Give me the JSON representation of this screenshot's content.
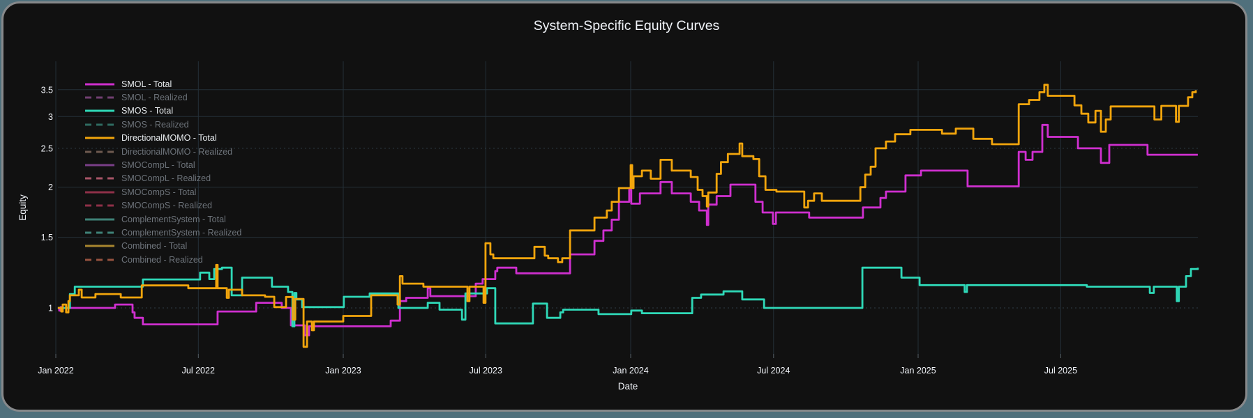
{
  "page": {
    "title": "System-Specific Equity Curves",
    "colors": {
      "page_background": "#50707c",
      "card_background": "#111111",
      "card_border": "#87898b",
      "grid": "#243038",
      "grid_dotted": "#2f3d47",
      "tick_mark": "#555f66",
      "text": "#f2f5fa",
      "muted_text": "#6d737a"
    }
  },
  "chart_data": {
    "type": "line",
    "title": "System-Specific Equity Curves",
    "xlabel": "Date",
    "ylabel": "Equity",
    "legend_position": "top-left-inside",
    "grid": true,
    "x_axis": {
      "range": [
        2022.007,
        2025.973
      ],
      "ticks": [
        {
          "t": 2022.0,
          "label": "Jan 2022"
        },
        {
          "t": 2022.496,
          "label": "Jul 2022"
        },
        {
          "t": 2023.0,
          "label": "Jan 2023"
        },
        {
          "t": 2023.496,
          "label": "Jul 2023"
        },
        {
          "t": 2024.0,
          "label": "Jan 2024"
        },
        {
          "t": 2024.497,
          "label": "Jul 2024"
        },
        {
          "t": 2025.0,
          "label": "Jan 2025"
        },
        {
          "t": 2025.496,
          "label": "Jul 2025"
        }
      ]
    },
    "y_axis": {
      "scale": "log",
      "range": [
        0.768,
        4.12
      ],
      "ticks": [
        1,
        1.5,
        2,
        2.5,
        3,
        3.5
      ],
      "dotted_ticks": [
        1,
        2.5
      ]
    },
    "series": [
      {
        "name": "SMOL - Total",
        "color": "#cf2fcf",
        "dash": "solid",
        "visible": true,
        "points": [
          [
            2022.007,
            1.0
          ],
          [
            2022.012,
            0.985
          ],
          [
            2022.017,
            1.005
          ],
          [
            2022.022,
            1.0
          ],
          [
            2022.206,
            1.02
          ],
          [
            2022.267,
            0.975
          ],
          [
            2022.274,
            0.945
          ],
          [
            2022.303,
            0.91
          ],
          [
            2022.563,
            0.98
          ],
          [
            2022.697,
            1.03
          ],
          [
            2022.786,
            1.0
          ],
          [
            2022.818,
            0.905
          ],
          [
            2022.866,
            0.855
          ],
          [
            2022.881,
            0.9
          ],
          [
            2023.165,
            0.93
          ],
          [
            2023.197,
            1.04
          ],
          [
            2023.219,
            1.06
          ],
          [
            2023.294,
            1.12
          ],
          [
            2023.303,
            1.07
          ],
          [
            2023.461,
            1.15
          ],
          [
            2023.485,
            1.18
          ],
          [
            2023.529,
            1.235
          ],
          [
            2023.536,
            1.26
          ],
          [
            2023.602,
            1.22
          ],
          [
            2023.789,
            1.36
          ],
          [
            2023.874,
            1.47
          ],
          [
            2023.905,
            1.56
          ],
          [
            2023.934,
            1.66
          ],
          [
            2023.959,
            1.84
          ],
          [
            2023.995,
            1.97
          ],
          [
            2024.002,
            1.82
          ],
          [
            2024.032,
            1.93
          ],
          [
            2024.104,
            2.06
          ],
          [
            2024.143,
            1.93
          ],
          [
            2024.209,
            1.84
          ],
          [
            2024.238,
            1.75
          ],
          [
            2024.265,
            1.61
          ],
          [
            2024.27,
            1.81
          ],
          [
            2024.299,
            1.9
          ],
          [
            2024.347,
            2.03
          ],
          [
            2024.434,
            1.84
          ],
          [
            2024.459,
            1.73
          ],
          [
            2024.495,
            1.62
          ],
          [
            2024.505,
            1.73
          ],
          [
            2024.621,
            1.68
          ],
          [
            2024.808,
            1.78
          ],
          [
            2024.869,
            1.88
          ],
          [
            2024.888,
            1.95
          ],
          [
            2024.956,
            2.14
          ],
          [
            2025.01,
            2.2
          ],
          [
            2025.172,
            2.01
          ],
          [
            2025.35,
            2.45
          ],
          [
            2025.374,
            2.34
          ],
          [
            2025.398,
            2.45
          ],
          [
            2025.432,
            2.86
          ],
          [
            2025.451,
            2.67
          ],
          [
            2025.556,
            2.5
          ],
          [
            2025.636,
            2.3
          ],
          [
            2025.665,
            2.55
          ],
          [
            2025.798,
            2.41
          ],
          [
            2025.973,
            2.41
          ]
        ]
      },
      {
        "name": "SMOL - Realized",
        "color": "#713f71",
        "dash": "dash",
        "visible": false,
        "points": []
      },
      {
        "name": "SMOS - Total",
        "color": "#2fd9b8",
        "dash": "solid",
        "visible": true,
        "points": [
          [
            2022.007,
            1.0
          ],
          [
            2022.049,
            1.083
          ],
          [
            2022.066,
            1.13
          ],
          [
            2022.303,
            1.178
          ],
          [
            2022.502,
            1.225
          ],
          [
            2022.534,
            1.18
          ],
          [
            2022.551,
            1.25
          ],
          [
            2022.578,
            1.26
          ],
          [
            2022.612,
            1.075
          ],
          [
            2022.648,
            1.19
          ],
          [
            2022.752,
            1.13
          ],
          [
            2022.808,
            1.096
          ],
          [
            2022.823,
            0.9
          ],
          [
            2022.83,
            1.09
          ],
          [
            2022.837,
            1.05
          ],
          [
            2022.857,
            1.005
          ],
          [
            2023.002,
            1.066
          ],
          [
            2023.092,
            1.087
          ],
          [
            2023.192,
            1.0
          ],
          [
            2023.294,
            1.03
          ],
          [
            2023.335,
            0.99
          ],
          [
            2023.413,
            0.935
          ],
          [
            2023.425,
            1.087
          ],
          [
            2023.5,
            1.12
          ],
          [
            2023.529,
            0.915
          ],
          [
            2023.66,
            1.025
          ],
          [
            2023.709,
            0.945
          ],
          [
            2023.755,
            0.975
          ],
          [
            2023.765,
            0.99
          ],
          [
            2023.888,
            0.965
          ],
          [
            2024.002,
            0.985
          ],
          [
            2024.039,
            0.97
          ],
          [
            2024.214,
            1.06
          ],
          [
            2024.245,
            1.08
          ],
          [
            2024.323,
            1.1
          ],
          [
            2024.388,
            1.05
          ],
          [
            2024.464,
            1.0
          ],
          [
            2024.806,
            1.26
          ],
          [
            2024.942,
            1.19
          ],
          [
            2025.005,
            1.14
          ],
          [
            2025.162,
            1.096
          ],
          [
            2025.17,
            1.14
          ],
          [
            2025.587,
            1.13
          ],
          [
            2025.806,
            1.09
          ],
          [
            2025.82,
            1.13
          ],
          [
            2025.9,
            1.04
          ],
          [
            2025.907,
            1.13
          ],
          [
            2025.932,
            1.2
          ],
          [
            2025.949,
            1.25
          ],
          [
            2025.973,
            1.26
          ]
        ]
      },
      {
        "name": "SMOS - Realized",
        "color": "#2f6b61",
        "dash": "dash",
        "visible": false,
        "points": []
      },
      {
        "name": "DirectionalMOMO - Total",
        "color": "#f2a50c",
        "dash": "solid",
        "visible": true,
        "points": [
          [
            2022.007,
            1.0
          ],
          [
            2022.019,
            0.98
          ],
          [
            2022.024,
            1.02
          ],
          [
            2022.036,
            0.975
          ],
          [
            2022.044,
            1.04
          ],
          [
            2022.049,
            1.075
          ],
          [
            2022.08,
            1.11
          ],
          [
            2022.09,
            1.062
          ],
          [
            2022.138,
            1.083
          ],
          [
            2022.226,
            1.062
          ],
          [
            2022.299,
            1.138
          ],
          [
            2022.461,
            1.12
          ],
          [
            2022.558,
            1.28
          ],
          [
            2022.563,
            1.12
          ],
          [
            2022.595,
            1.06
          ],
          [
            2022.602,
            1.11
          ],
          [
            2022.648,
            1.075
          ],
          [
            2022.728,
            1.066
          ],
          [
            2022.76,
            1.005
          ],
          [
            2022.801,
            1.065
          ],
          [
            2022.825,
            0.935
          ],
          [
            2022.833,
            1.053
          ],
          [
            2022.862,
            0.8
          ],
          [
            2022.874,
            0.925
          ],
          [
            2022.891,
            0.88
          ],
          [
            2022.898,
            0.925
          ],
          [
            2023.0,
            0.955
          ],
          [
            2023.097,
            1.075
          ],
          [
            2023.189,
            1.02
          ],
          [
            2023.197,
            1.2
          ],
          [
            2023.206,
            1.15
          ],
          [
            2023.279,
            1.13
          ],
          [
            2023.432,
            1.04
          ],
          [
            2023.439,
            1.13
          ],
          [
            2023.488,
            1.03
          ],
          [
            2023.495,
            1.45
          ],
          [
            2023.512,
            1.36
          ],
          [
            2023.522,
            1.33
          ],
          [
            2023.665,
            1.42
          ],
          [
            2023.701,
            1.35
          ],
          [
            2023.713,
            1.33
          ],
          [
            2023.747,
            1.3
          ],
          [
            2023.762,
            1.33
          ],
          [
            2023.789,
            1.56
          ],
          [
            2023.874,
            1.68
          ],
          [
            2023.917,
            1.75
          ],
          [
            2023.934,
            1.84
          ],
          [
            2023.959,
            1.99
          ],
          [
            2024.0,
            2.27
          ],
          [
            2024.005,
            1.99
          ],
          [
            2024.01,
            2.13
          ],
          [
            2024.039,
            2.2
          ],
          [
            2024.07,
            2.1
          ],
          [
            2024.104,
            2.34
          ],
          [
            2024.143,
            2.2
          ],
          [
            2024.209,
            2.12
          ],
          [
            2024.233,
            1.97
          ],
          [
            2024.25,
            1.9
          ],
          [
            2024.265,
            1.79
          ],
          [
            2024.27,
            1.94
          ],
          [
            2024.299,
            2.16
          ],
          [
            2024.314,
            2.31
          ],
          [
            2024.338,
            2.42
          ],
          [
            2024.379,
            2.57
          ],
          [
            2024.388,
            2.39
          ],
          [
            2024.427,
            2.35
          ],
          [
            2024.447,
            2.13
          ],
          [
            2024.469,
            1.97
          ],
          [
            2024.507,
            1.95
          ],
          [
            2024.604,
            1.78
          ],
          [
            2024.617,
            1.85
          ],
          [
            2024.638,
            1.93
          ],
          [
            2024.665,
            1.85
          ],
          [
            2024.799,
            2.0
          ],
          [
            2024.816,
            2.15
          ],
          [
            2024.835,
            2.25
          ],
          [
            2024.852,
            2.5
          ],
          [
            2024.888,
            2.6
          ],
          [
            2024.92,
            2.71
          ],
          [
            2024.973,
            2.78
          ],
          [
            2025.083,
            2.72
          ],
          [
            2025.131,
            2.8
          ],
          [
            2025.192,
            2.64
          ],
          [
            2025.257,
            2.56
          ],
          [
            2025.35,
            3.22
          ],
          [
            2025.386,
            3.3
          ],
          [
            2025.422,
            3.45
          ],
          [
            2025.439,
            3.6
          ],
          [
            2025.451,
            3.38
          ],
          [
            2025.544,
            3.2
          ],
          [
            2025.568,
            3.05
          ],
          [
            2025.592,
            2.9
          ],
          [
            2025.617,
            3.1
          ],
          [
            2025.636,
            2.75
          ],
          [
            2025.653,
            2.95
          ],
          [
            2025.67,
            3.18
          ],
          [
            2025.822,
            2.95
          ],
          [
            2025.846,
            3.19
          ],
          [
            2025.897,
            2.91
          ],
          [
            2025.907,
            3.19
          ],
          [
            2025.939,
            3.35
          ],
          [
            2025.954,
            3.45
          ],
          [
            2025.966,
            3.49
          ]
        ]
      },
      {
        "name": "DirectionalMOMO - Realized",
        "color": "#6e5a50",
        "dash": "dash",
        "visible": false,
        "points": []
      },
      {
        "name": "SMOCompL - Total",
        "color": "#7a3f88",
        "dash": "solid",
        "visible": false,
        "points": []
      },
      {
        "name": "SMOCompL - Realized",
        "color": "#a85568",
        "dash": "dash",
        "visible": false,
        "points": []
      },
      {
        "name": "SMOCompS - Total",
        "color": "#8e3048",
        "dash": "solid",
        "visible": false,
        "points": []
      },
      {
        "name": "SMOCompS - Realized",
        "color": "#8e3048",
        "dash": "dash",
        "visible": false,
        "points": []
      },
      {
        "name": "ComplementSystem - Total",
        "color": "#3f8278",
        "dash": "solid",
        "visible": false,
        "points": []
      },
      {
        "name": "ComplementSystem - Realized",
        "color": "#3f8278",
        "dash": "dash",
        "visible": false,
        "points": []
      },
      {
        "name": "Combined - Total",
        "color": "#a8862f",
        "dash": "solid",
        "visible": false,
        "points": []
      },
      {
        "name": "Combined - Realized",
        "color": "#96523f",
        "dash": "dash",
        "visible": false,
        "points": []
      }
    ]
  }
}
